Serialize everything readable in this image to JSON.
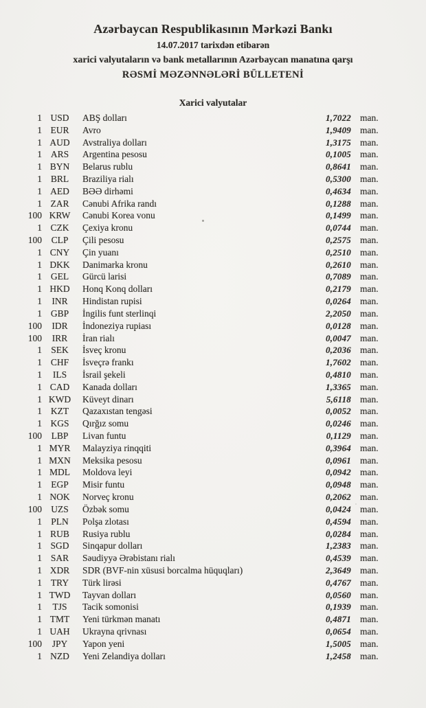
{
  "page": {
    "background": "#f1f0ed",
    "text_color": "#2d2b27"
  },
  "header": {
    "bank_name": "Azərbaycan Respublikasının Mərkəzi Bankı",
    "date_line": "14.07.2017 tarixdən etibarən",
    "subject_line": "xarici valyutaların və bank metallarının Azərbaycan manatına qarşı",
    "bulletin_title": "RƏSMİ MƏZƏNNƏLƏRİ BÜLLETENİ"
  },
  "section": {
    "title": "Xarici valyutalar"
  },
  "unit_label": "man.",
  "rates": [
    {
      "nominal": "1",
      "code": "USD",
      "name": "ABŞ dolları",
      "rate": "1,7022"
    },
    {
      "nominal": "1",
      "code": "EUR",
      "name": "Avro",
      "rate": "1,9409"
    },
    {
      "nominal": "1",
      "code": "AUD",
      "name": "Avstraliya dolları",
      "rate": "1,3175"
    },
    {
      "nominal": "1",
      "code": "ARS",
      "name": "Argentina pesosu",
      "rate": "0,1005"
    },
    {
      "nominal": "1",
      "code": "BYN",
      "name": "Belarus rublu",
      "rate": "0,8641"
    },
    {
      "nominal": "1",
      "code": "BRL",
      "name": "Braziliya rialı",
      "rate": "0,5300"
    },
    {
      "nominal": "1",
      "code": "AED",
      "name": "BƏƏ dirhəmi",
      "rate": "0,4634"
    },
    {
      "nominal": "1",
      "code": "ZAR",
      "name": "Cənubi Afrika randı",
      "rate": "0,1288"
    },
    {
      "nominal": "100",
      "code": "KRW",
      "name": "Cənubi Korea vonu",
      "rate": "0,1499"
    },
    {
      "nominal": "1",
      "code": "CZK",
      "name": "Çexiya kronu",
      "rate": "0,0744"
    },
    {
      "nominal": "100",
      "code": "CLP",
      "name": "Çili pesosu",
      "rate": "0,2575"
    },
    {
      "nominal": "1",
      "code": "CNY",
      "name": "Çin yuanı",
      "rate": "0,2510"
    },
    {
      "nominal": "1",
      "code": "DKK",
      "name": "Danimarka kronu",
      "rate": "0,2610"
    },
    {
      "nominal": "1",
      "code": "GEL",
      "name": "Gürcü larisi",
      "rate": "0,7089"
    },
    {
      "nominal": "1",
      "code": "HKD",
      "name": "Honq Konq dolları",
      "rate": "0,2179"
    },
    {
      "nominal": "1",
      "code": "INR",
      "name": "Hindistan rupisi",
      "rate": "0,0264"
    },
    {
      "nominal": "1",
      "code": "GBP",
      "name": "İngilis funt sterlinqi",
      "rate": "2,2050"
    },
    {
      "nominal": "100",
      "code": "IDR",
      "name": "İndoneziya rupiası",
      "rate": "0,0128"
    },
    {
      "nominal": "100",
      "code": "IRR",
      "name": "İran rialı",
      "rate": "0,0047"
    },
    {
      "nominal": "1",
      "code": "SEK",
      "name": "İsveç kronu",
      "rate": "0,2036"
    },
    {
      "nominal": "1",
      "code": "CHF",
      "name": "İsveçrə frankı",
      "rate": "1,7602"
    },
    {
      "nominal": "1",
      "code": "ILS",
      "name": "İsrail şekeli",
      "rate": "0,4810"
    },
    {
      "nominal": "1",
      "code": "CAD",
      "name": "Kanada dolları",
      "rate": "1,3365"
    },
    {
      "nominal": "1",
      "code": "KWD",
      "name": "Küveyt dinarı",
      "rate": "5,6118"
    },
    {
      "nominal": "1",
      "code": "KZT",
      "name": "Qazaxıstan tengəsi",
      "rate": "0,0052"
    },
    {
      "nominal": "1",
      "code": "KGS",
      "name": "Qırğız somu",
      "rate": "0,0246"
    },
    {
      "nominal": "100",
      "code": "LBP",
      "name": "Livan funtu",
      "rate": "0,1129"
    },
    {
      "nominal": "1",
      "code": "MYR",
      "name": "Malayziya rinqqiti",
      "rate": "0,3964"
    },
    {
      "nominal": "1",
      "code": "MXN",
      "name": "Meksika pesosu",
      "rate": "0,0961"
    },
    {
      "nominal": "1",
      "code": "MDL",
      "name": "Moldova leyi",
      "rate": "0,0942"
    },
    {
      "nominal": "1",
      "code": "EGP",
      "name": "Misir funtu",
      "rate": "0,0948"
    },
    {
      "nominal": "1",
      "code": "NOK",
      "name": "Norveç kronu",
      "rate": "0,2062"
    },
    {
      "nominal": "100",
      "code": "UZS",
      "name": "Özbək somu",
      "rate": "0,0424"
    },
    {
      "nominal": "1",
      "code": "PLN",
      "name": "Polşa zlotası",
      "rate": "0,4594"
    },
    {
      "nominal": "1",
      "code": "RUB",
      "name": "Rusiya rublu",
      "rate": "0,0284"
    },
    {
      "nominal": "1",
      "code": "SGD",
      "name": "Sinqapur dolları",
      "rate": "1,2383"
    },
    {
      "nominal": "1",
      "code": "SAR",
      "name": "Səudiyyə Ərəbistanı rialı",
      "rate": "0,4539"
    },
    {
      "nominal": "1",
      "code": "XDR",
      "name": "SDR (BVF-nin xüsusi borcalma hüquqları)",
      "rate": "2,3649"
    },
    {
      "nominal": "1",
      "code": "TRY",
      "name": "Türk lirəsi",
      "rate": "0,4767"
    },
    {
      "nominal": "1",
      "code": "TWD",
      "name": "Tayvan dolları",
      "rate": "0,0560"
    },
    {
      "nominal": "1",
      "code": "TJS",
      "name": "Tacik somonisi",
      "rate": "0,1939"
    },
    {
      "nominal": "1",
      "code": "TMT",
      "name": "Yeni türkmən manatı",
      "rate": "0,4871"
    },
    {
      "nominal": "1",
      "code": "UAH",
      "name": "Ukrayna qrivnası",
      "rate": "0,0654"
    },
    {
      "nominal": "100",
      "code": "JPY",
      "name": "Yapon yeni",
      "rate": "1,5005"
    },
    {
      "nominal": "1",
      "code": "NZD",
      "name": "Yeni Zelandiya dolları",
      "rate": "1,2458"
    }
  ]
}
